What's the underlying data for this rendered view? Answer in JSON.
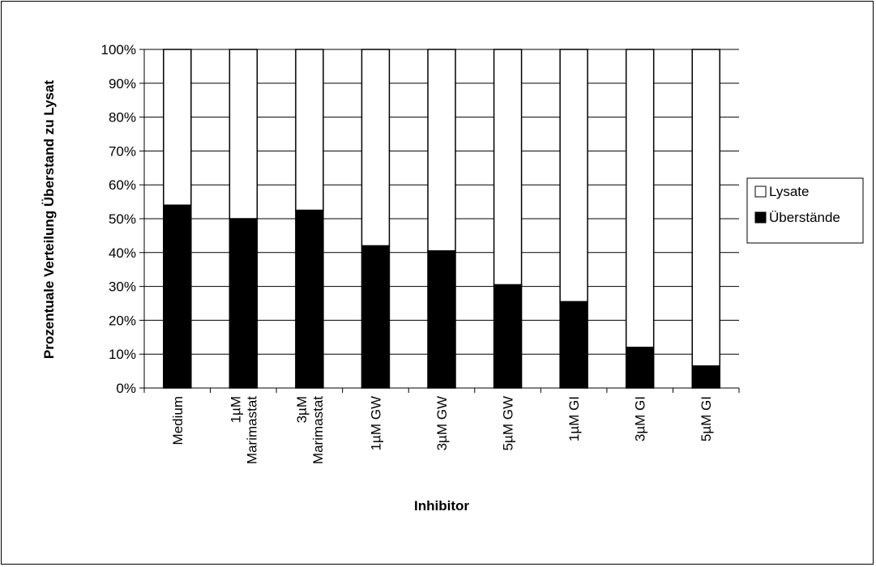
{
  "chart_data": {
    "type": "bar",
    "stacked": true,
    "percent_stacked": true,
    "title": "",
    "xlabel": "Inhibitor",
    "ylabel": "Prozentuale Verteilung Überstand zu Lysat",
    "categories": [
      [
        "Medium"
      ],
      [
        "1µM",
        "Marimastat"
      ],
      [
        "3µM",
        "Marimastat"
      ],
      [
        "1µM GW"
      ],
      [
        "3µM GW"
      ],
      [
        "5µM GW"
      ],
      [
        "1µM GI"
      ],
      [
        "3µM GI"
      ],
      [
        "5µM GI"
      ]
    ],
    "series": [
      {
        "name": "Überstände",
        "color": "#000000",
        "values": [
          54,
          50,
          52.5,
          42,
          40.5,
          30.5,
          25.5,
          12,
          6.5
        ]
      },
      {
        "name": "Lysate",
        "color": "#ffffff",
        "values": [
          46,
          50,
          47.5,
          58,
          59.5,
          69.5,
          74.5,
          88,
          93.5
        ]
      }
    ],
    "yticks": [
      "0%",
      "10%",
      "20%",
      "30%",
      "40%",
      "50%",
      "60%",
      "70%",
      "80%",
      "90%",
      "100%"
    ],
    "ylim": [
      0,
      100
    ],
    "grid": true,
    "legend": {
      "placement": "right",
      "entries": [
        "Lysate",
        "Überstände"
      ]
    }
  }
}
